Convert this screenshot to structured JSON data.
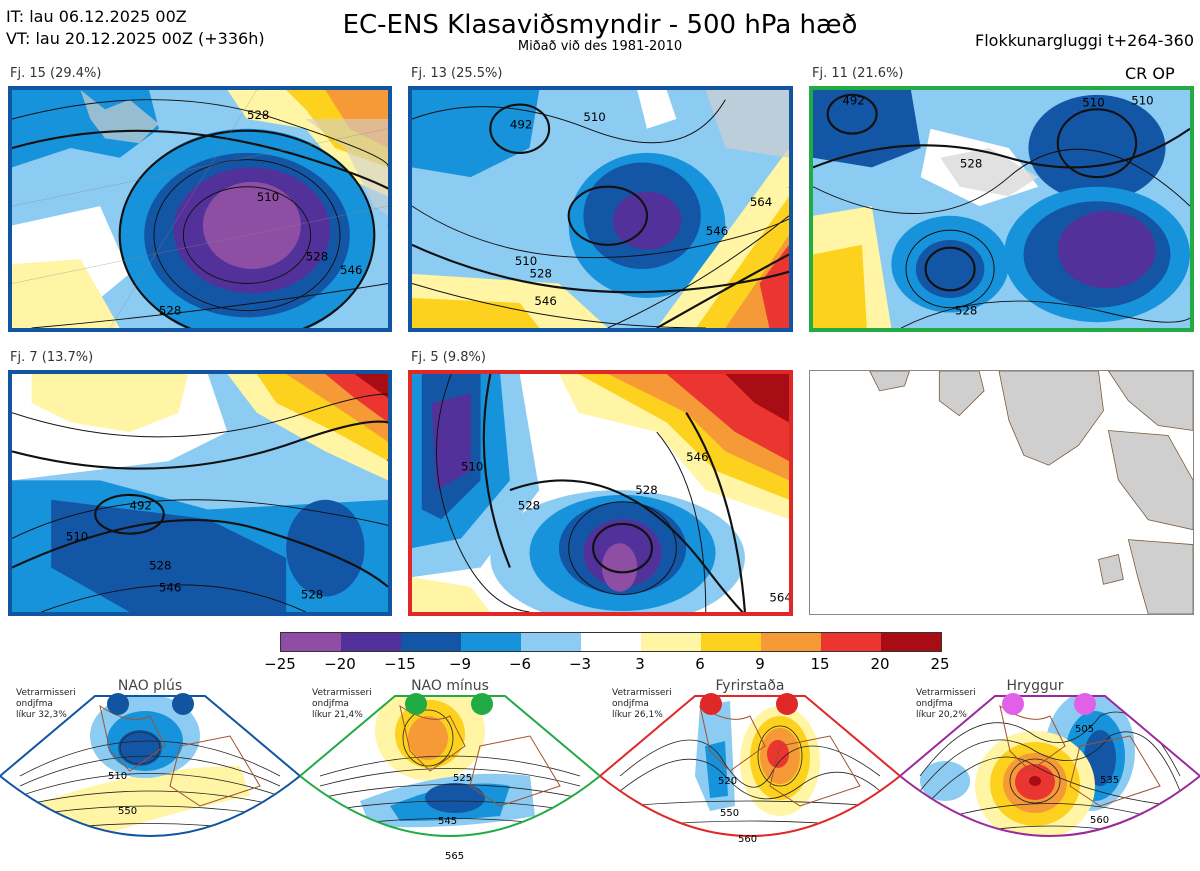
{
  "header": {
    "init_time": "IT: lau 06.12.2025 00Z",
    "valid_time": "VT: lau 20.12.2025 00Z  (+336h)",
    "title": "EC-ENS Klasaviðsmyndir - 500 hPa hæð",
    "subtitle": "Miðað við des 1981-2010",
    "window": "Flokkunargluggi t+264-360"
  },
  "panels": [
    {
      "label": "Fj. 15 (29.4%)",
      "border_color": "#1155a0",
      "extra": ""
    },
    {
      "label": "Fj. 13 (25.5%)",
      "border_color": "#1155a0",
      "extra": ""
    },
    {
      "label": "Fj. 11 (21.6%)",
      "border_color": "#22aa44",
      "extra": "CR OP"
    },
    {
      "label": "Fj. 7 (13.7%)",
      "border_color": "#1155a0",
      "extra": ""
    },
    {
      "label": "Fj. 5 (9.8%)",
      "border_color": "#e02828",
      "extra": ""
    }
  ],
  "contour_labels": {
    "p1": [
      "510",
      "528",
      "528",
      "546",
      "528"
    ],
    "p2": [
      "492",
      "510",
      "510",
      "528",
      "546",
      "546",
      "564"
    ],
    "p3": [
      "492",
      "510",
      "528",
      "528",
      "510"
    ],
    "p4": [
      "492",
      "510",
      "528",
      "546",
      "528"
    ],
    "p5": [
      "510",
      "528",
      "528",
      "546",
      "564"
    ]
  },
  "colorbar": {
    "ticks": [
      "−25",
      "−20",
      "−15",
      "−9",
      "−6",
      "−3",
      "3",
      "6",
      "9",
      "15",
      "20",
      "25"
    ],
    "colors": [
      "#8e4ea4",
      "#52329a",
      "#1456a6",
      "#1793dc",
      "#8ccbf2",
      "#ffffff",
      "#fff5a4",
      "#fdd21e",
      "#f59a37",
      "#ea3530",
      "#a80c14"
    ]
  },
  "regimes": [
    {
      "name": "NAO plús",
      "stat1": "Vetrarmisseri",
      "stat2": "ondjfma",
      "stat3": "líkur 32,3%",
      "color": "#1155a0",
      "labels": [
        "510",
        "550"
      ]
    },
    {
      "name": "NAO mínus",
      "stat1": "Vetrarmisseri",
      "stat2": "ondjfma",
      "stat3": "líkur 21,4%",
      "color": "#22aa44",
      "labels": [
        "525",
        "545",
        "565"
      ]
    },
    {
      "name": "Fyrirstaða",
      "stat1": "Vetrarmisseri",
      "stat2": "ondjfma",
      "stat3": "líkur 26,1%",
      "color": "#e02828",
      "labels": [
        "520",
        "550",
        "560"
      ]
    },
    {
      "name": "Hryggur",
      "stat1": "Vetrarmisseri",
      "stat2": "ondjfma",
      "stat3": "líkur 20,2%",
      "color": "#e060e8",
      "labels": [
        "505",
        "535",
        "560"
      ]
    }
  ]
}
